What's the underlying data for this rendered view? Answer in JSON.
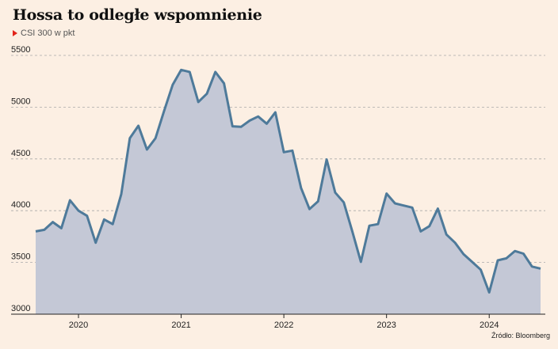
{
  "header": {
    "title": "Hossa to odległe wspomnienie",
    "subtitle": "CSI 300 w pkt"
  },
  "footer": {
    "source": "Źródło: Bloomberg"
  },
  "colors": {
    "background": "#fcefe3",
    "line": "#4e7a9a",
    "area": "#c4c8d6",
    "grid": "#a9a9a9",
    "marker": "#e2231a"
  },
  "chart_data": {
    "type": "area",
    "title": "Hossa to odległe wspomnienie",
    "subtitle": "CSI 300 w pkt",
    "xlabel": "",
    "ylabel": "",
    "ylim": [
      3000,
      5500
    ],
    "yticks": [
      3000,
      3500,
      4000,
      4500,
      5000,
      5500
    ],
    "xticks": [
      {
        "label": "2020",
        "x": 2020.0
      },
      {
        "label": "2021",
        "x": 2021.0
      },
      {
        "label": "2022",
        "x": 2022.0
      },
      {
        "label": "2023",
        "x": 2023.0
      },
      {
        "label": "2024",
        "x": 2024.0
      }
    ],
    "grid": true,
    "series": [
      {
        "x": [
          2019.583,
          2019.667,
          2019.75,
          2019.833,
          2019.917,
          2020.0,
          2020.083,
          2020.167,
          2020.25,
          2020.333,
          2020.417,
          2020.5,
          2020.583,
          2020.667,
          2020.75,
          2020.833,
          2020.917,
          2021.0,
          2021.083,
          2021.167,
          2021.25,
          2021.333,
          2021.417,
          2021.5,
          2021.583,
          2021.667,
          2021.75,
          2021.833,
          2021.917,
          2022.0,
          2022.083,
          2022.167,
          2022.25,
          2022.333,
          2022.417,
          2022.5,
          2022.583,
          2022.667,
          2022.75,
          2022.833,
          2022.917,
          2023.0,
          2023.083,
          2023.167,
          2023.25,
          2023.333,
          2023.417,
          2023.5,
          2023.583,
          2023.667,
          2023.75,
          2023.833,
          2023.917,
          2024.0,
          2024.083,
          2024.167,
          2024.25,
          2024.333,
          2024.417,
          2024.5
        ],
        "values": [
          3800,
          3815,
          3890,
          3830,
          4100,
          4000,
          3950,
          3690,
          3915,
          3870,
          4160,
          4700,
          4820,
          4590,
          4700,
          4960,
          5215,
          5360,
          5340,
          5050,
          5130,
          5340,
          5230,
          4815,
          4810,
          4870,
          4910,
          4840,
          4950,
          4565,
          4580,
          4220,
          4015,
          4090,
          4495,
          4175,
          4080,
          3800,
          3505,
          3855,
          3870,
          4165,
          4070,
          4050,
          4030,
          3800,
          3850,
          4020,
          3770,
          3690,
          3580,
          3505,
          3430,
          3210,
          3520,
          3540,
          3610,
          3585,
          3460,
          3440
        ]
      }
    ]
  }
}
